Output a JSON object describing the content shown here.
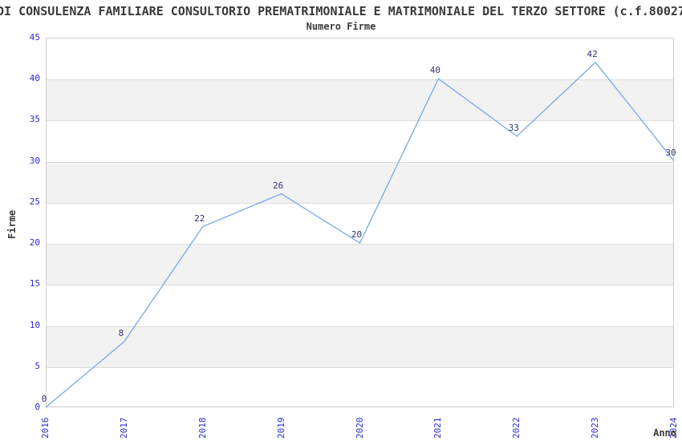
{
  "figure": {
    "title": "DI CONSULENZA FAMILIARE CONSULTORIO PREMATRIMONIALE E MATRIMONIALE DEL TERZO SETTORE (c.f.80027",
    "subtitle": "Numero Firme"
  },
  "chart_data": {
    "type": "line",
    "title": "Numero Firme",
    "xlabel": "Anno",
    "ylabel": "Firme",
    "categories": [
      "2016",
      "2017",
      "2018",
      "2019",
      "2020",
      "2021",
      "2022",
      "2023",
      "2024"
    ],
    "values": [
      0,
      8,
      22,
      26,
      20,
      40,
      33,
      42,
      30
    ],
    "ylim": [
      0,
      45
    ],
    "ytick_step": 5,
    "yticks": [
      0,
      5,
      10,
      15,
      20,
      25,
      30,
      35,
      40,
      45
    ],
    "grid": "horizontal",
    "band_style": "alternating light-gray horizontal bands every 5 units (5-10, 15-20, 25-30, 35-40)",
    "legend": "none",
    "data_labels_shown": true,
    "colors": {
      "line": "#78a8e8",
      "tick_label": "#2b2bd0",
      "data_label": "#333378",
      "band_fill": "#f2f2f2",
      "gridline": "#dcdcdc",
      "spine": "#cccccc",
      "text": "#3a3a3a"
    }
  }
}
